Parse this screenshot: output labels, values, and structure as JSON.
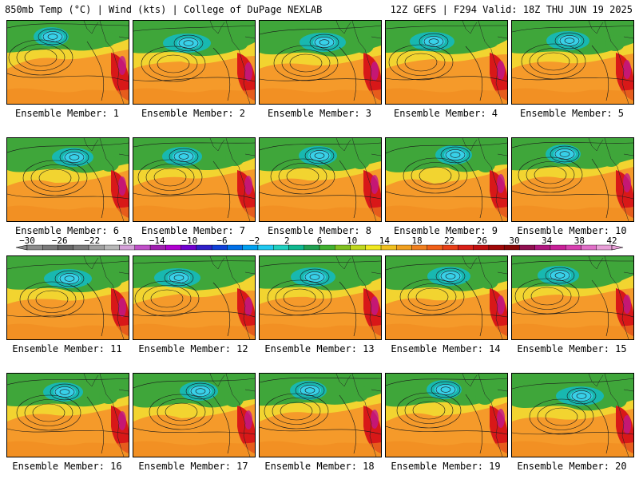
{
  "header": {
    "left": "850mb Temp (°C) | Wind (kts) | College of DuPage NEXLAB",
    "right": "12Z GEFS | F294 Valid: 18Z THU JUN 19 2025"
  },
  "colors": {
    "warm_orange": "#f59a2a",
    "yellow": "#f2d430",
    "green": "#3fa63a",
    "teal": "#18b8b0",
    "cyan": "#38d0e8",
    "red": "#d81818",
    "magenta": "#c0188c",
    "contour": "#1a1a1a"
  },
  "colorbar": {
    "tick_labels": [
      "−30",
      "−26",
      "−22",
      "−18",
      "−14",
      "−10",
      "−6",
      "−2",
      "2",
      "6",
      "10",
      "14",
      "18",
      "22",
      "26",
      "30",
      "34",
      "38",
      "42"
    ],
    "segment_colors": [
      "#8c8c8c",
      "#7a7a7a",
      "#686868",
      "#7c7c7c",
      "#a0a0a0",
      "#b8b8b8",
      "#d4a0d8",
      "#c050c8",
      "#a020b0",
      "#b000d0",
      "#7000d0",
      "#3020c8",
      "#1040d8",
      "#0070e8",
      "#00a0f0",
      "#20c8f0",
      "#20d0c0",
      "#10b890",
      "#20a050",
      "#40b030",
      "#80c020",
      "#c0d820",
      "#f0e820",
      "#f0c020",
      "#f0a020",
      "#f08020",
      "#f06018",
      "#e84018",
      "#d82018",
      "#c01010",
      "#a00808",
      "#880808",
      "#901050",
      "#b01880",
      "#c82098",
      "#d840b0",
      "#e070c8",
      "#e8a0d8"
    ]
  },
  "members": [
    {
      "label": "Ensemble Member: 1"
    },
    {
      "label": "Ensemble Member: 2"
    },
    {
      "label": "Ensemble Member: 3"
    },
    {
      "label": "Ensemble Member: 4"
    },
    {
      "label": "Ensemble Member: 5"
    },
    {
      "label": "Ensemble Member: 6"
    },
    {
      "label": "Ensemble Member: 7"
    },
    {
      "label": "Ensemble Member: 8"
    },
    {
      "label": "Ensemble Member: 9"
    },
    {
      "label": "Ensemble Member: 10"
    },
    {
      "label": "Ensemble Member: 11"
    },
    {
      "label": "Ensemble Member: 12"
    },
    {
      "label": "Ensemble Member: 13"
    },
    {
      "label": "Ensemble Member: 14"
    },
    {
      "label": "Ensemble Member: 15"
    },
    {
      "label": "Ensemble Member: 16"
    },
    {
      "label": "Ensemble Member: 17"
    },
    {
      "label": "Ensemble Member: 18"
    },
    {
      "label": "Ensemble Member: 19"
    },
    {
      "label": "Ensemble Member: 20"
    }
  ]
}
